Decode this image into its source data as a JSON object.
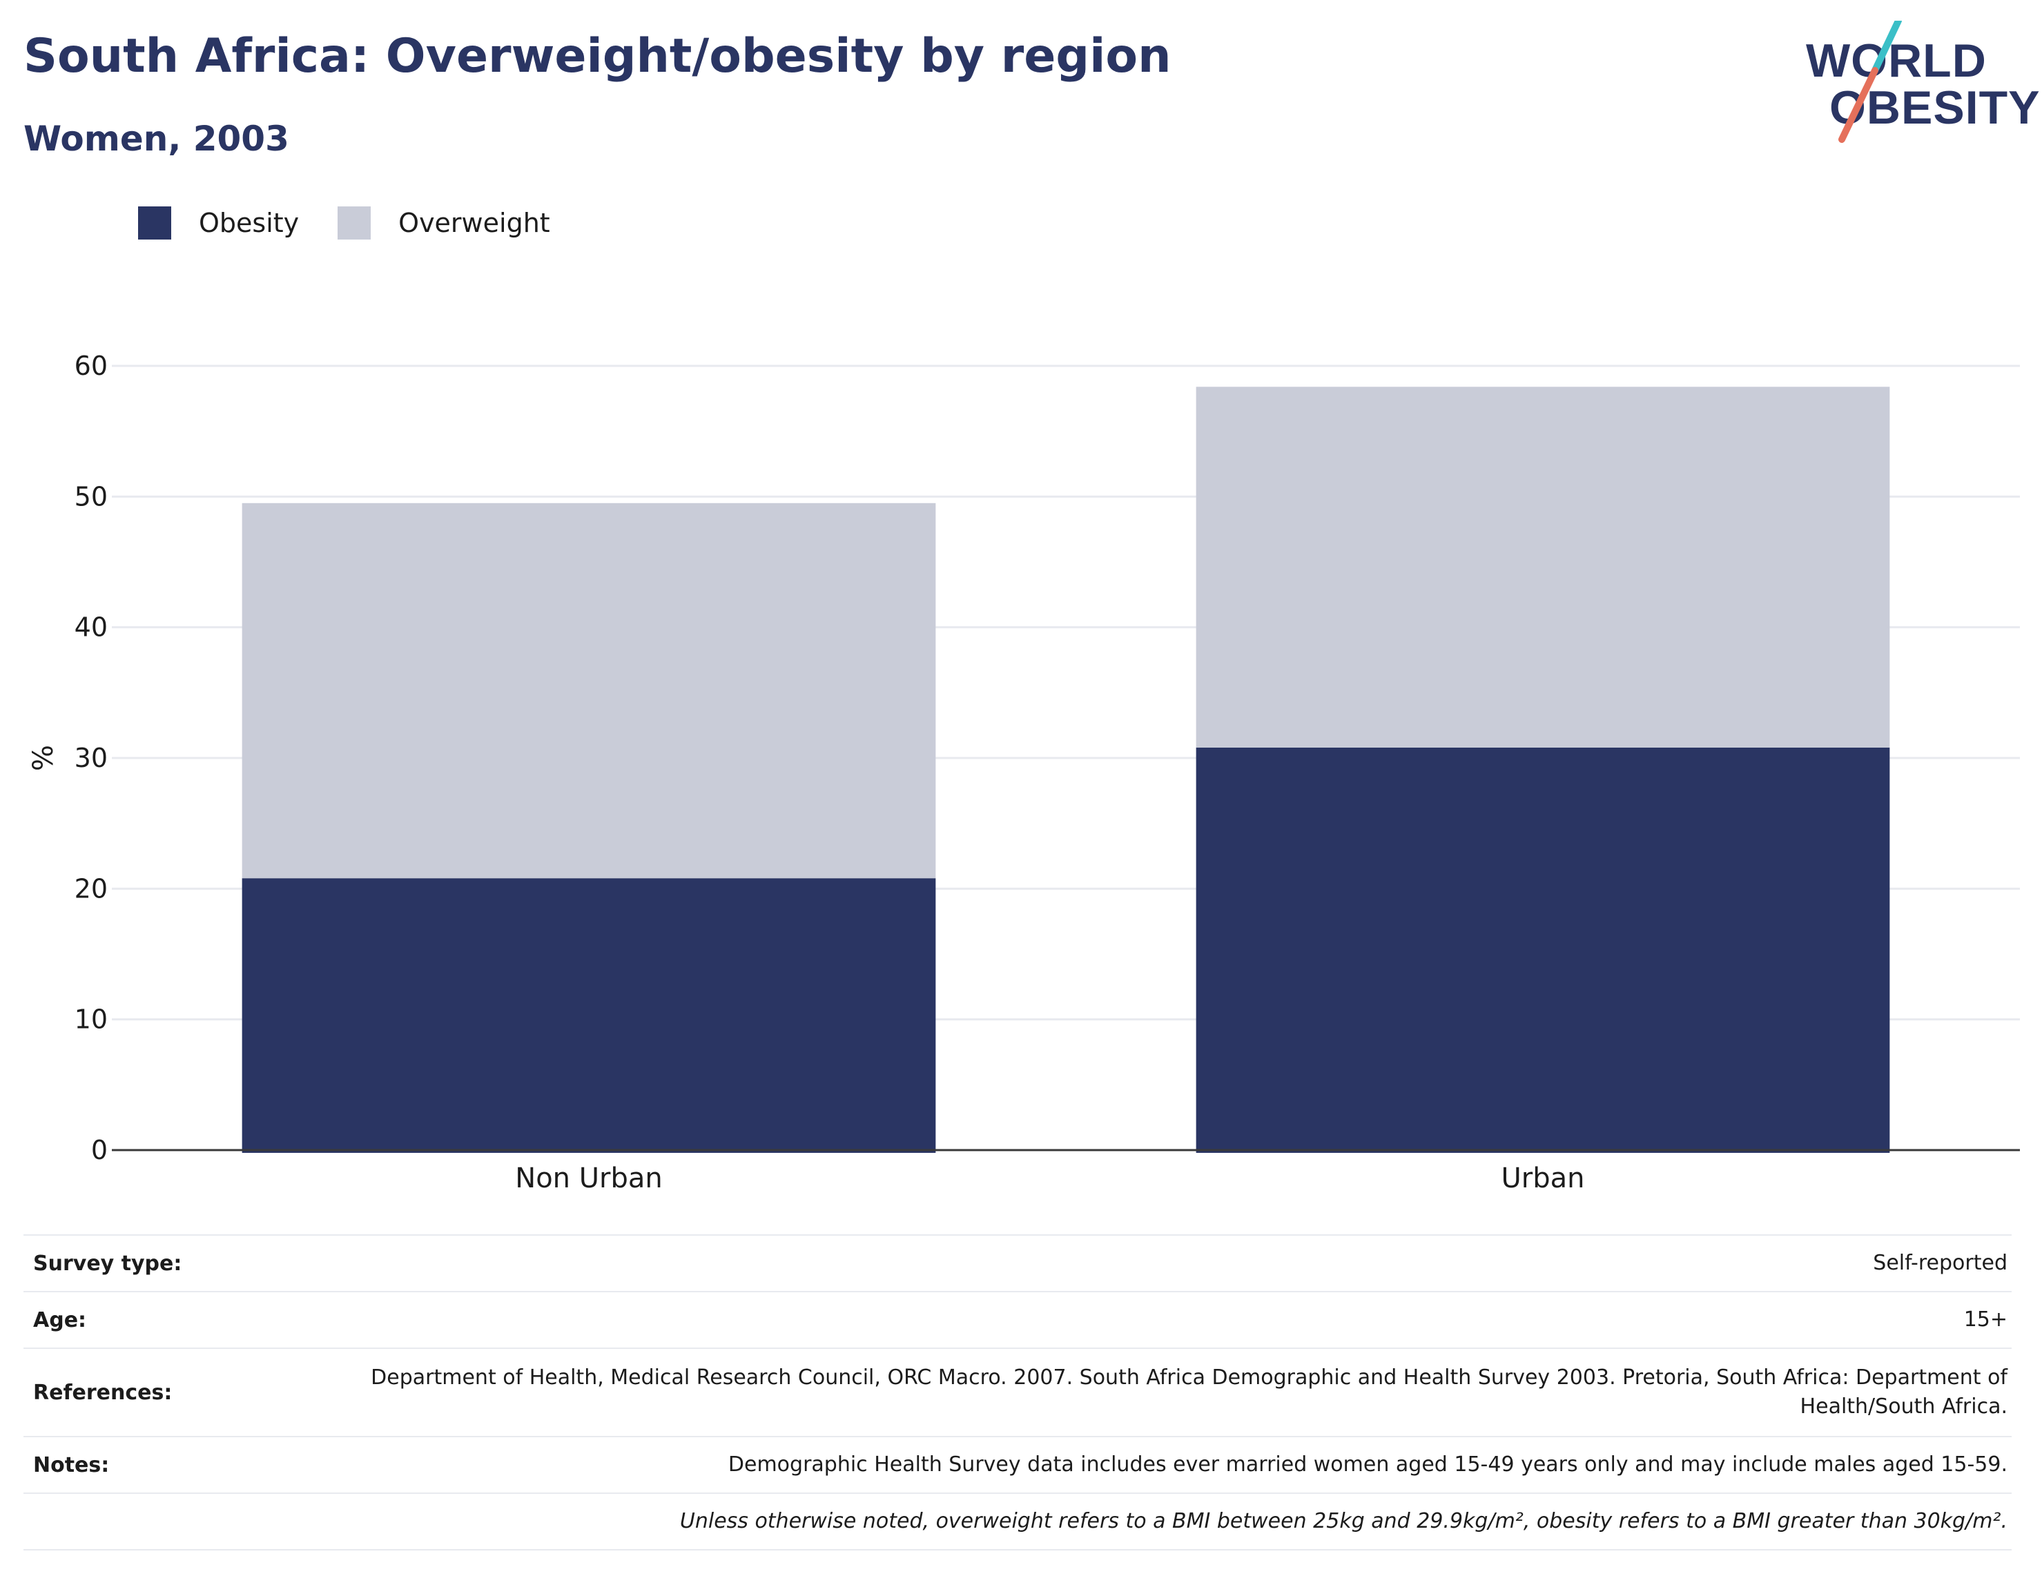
{
  "header": {
    "title": "South Africa: Overweight/obesity by region",
    "subtitle": "Women, 2003"
  },
  "logo": {
    "line1": "WORLD",
    "line2": "OBESITY",
    "accent_teal": "#3bbfc7",
    "accent_red": "#e5705b"
  },
  "legend": [
    {
      "label": "Obesity",
      "color": "#2a3563"
    },
    {
      "label": "Overweight",
      "color": "#c9ccd8"
    }
  ],
  "chart_data": {
    "type": "bar",
    "stacked": true,
    "categories": [
      "Non Urban",
      "Urban"
    ],
    "series": [
      {
        "name": "Obesity",
        "values": [
          20.8,
          30.8
        ],
        "color": "#2a3563"
      },
      {
        "name": "Overweight",
        "values": [
          28.7,
          27.6
        ],
        "color": "#c9ccd8"
      }
    ],
    "ylabel": "%",
    "ylim": [
      0,
      60
    ],
    "yticks": [
      "0",
      "10",
      "20",
      "30",
      "40",
      "50",
      "60"
    ],
    "grid": true,
    "legend_position": "top-left"
  },
  "info": [
    {
      "key": "Survey type:",
      "value": "Self-reported"
    },
    {
      "key": "Age:",
      "value": "15+"
    },
    {
      "key": "References:",
      "value": "Department of Health, Medical Research Council, ORC Macro. 2007. South Africa Demographic and Health Survey 2003. Pretoria, South Africa: Department of Health/South Africa."
    },
    {
      "key": "Notes:",
      "value": "Demographic Health Survey data includes ever married women aged 15-49 years only and may include males aged 15-59."
    },
    {
      "key": "",
      "value": "Unless otherwise noted, overweight refers to a BMI between 25kg and 29.9kg/m², obesity refers to a BMI greater than 30kg/m²."
    }
  ]
}
